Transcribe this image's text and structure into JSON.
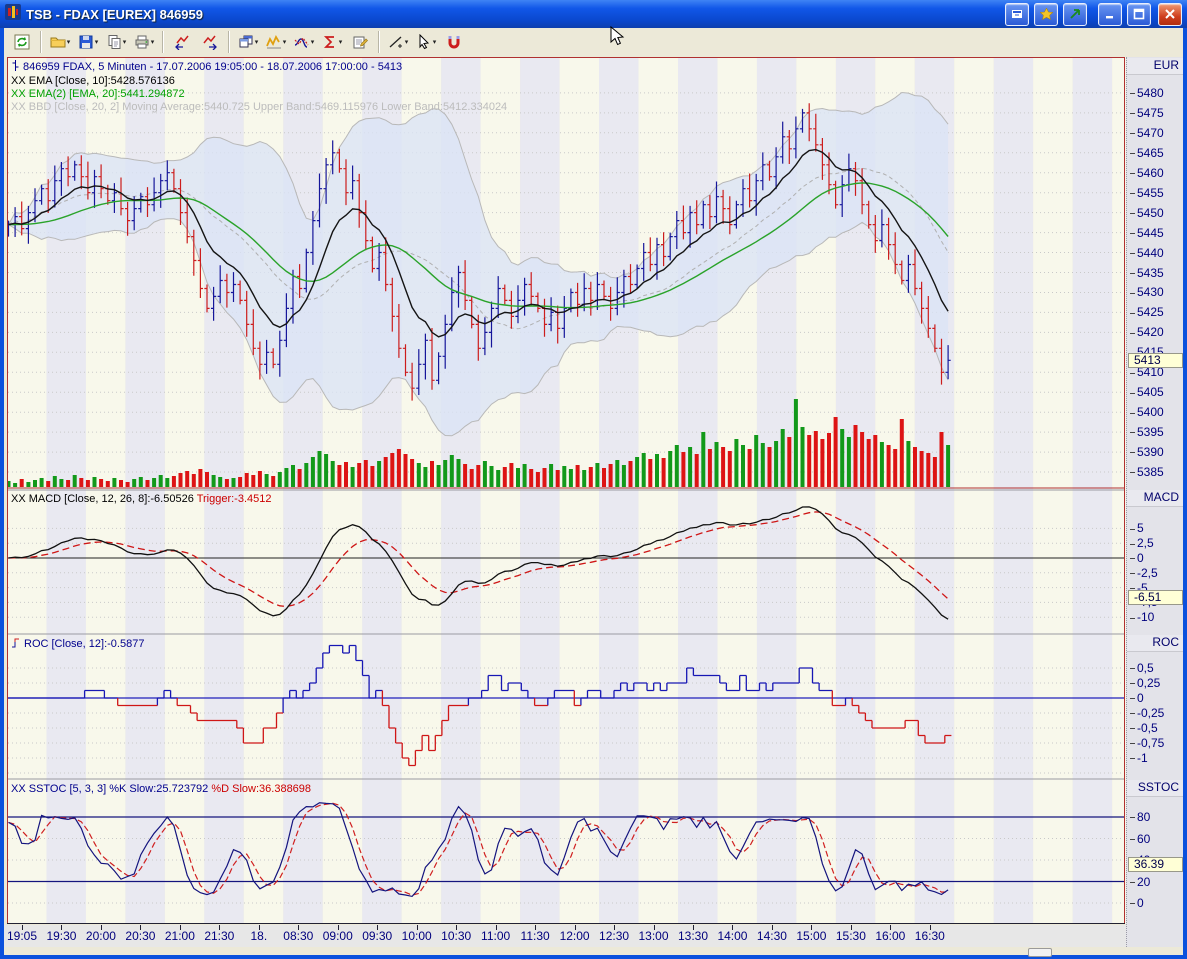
{
  "window": {
    "title": "TSB - FDAX [EUREX] 846959"
  },
  "toolbar": {
    "buttons": [
      {
        "name": "refresh-chart",
        "icon": "refresh"
      },
      {
        "sep": true
      },
      {
        "name": "open-file",
        "icon": "folder",
        "dropdown": true
      },
      {
        "name": "save",
        "icon": "floppy",
        "dropdown": true
      },
      {
        "name": "copy",
        "icon": "copy",
        "dropdown": true
      },
      {
        "name": "print",
        "icon": "printer",
        "dropdown": true
      },
      {
        "sep": true
      },
      {
        "name": "scroll-chart-left",
        "icon": "chart-left"
      },
      {
        "name": "scroll-chart-right",
        "icon": "chart-right"
      },
      {
        "sep": true
      },
      {
        "name": "chart-windows",
        "icon": "windows",
        "dropdown": true
      },
      {
        "name": "indicators",
        "icon": "indicator",
        "dropdown": true
      },
      {
        "name": "studies",
        "icon": "study",
        "dropdown": true
      },
      {
        "name": "signals",
        "icon": "sigma",
        "dropdown": true
      },
      {
        "name": "chart-properties",
        "icon": "properties"
      },
      {
        "sep": true
      },
      {
        "name": "draw-line",
        "icon": "line",
        "dropdown": true
      },
      {
        "name": "pointer-tool",
        "icon": "pointer",
        "dropdown": true
      },
      {
        "name": "magnet-mode",
        "icon": "magnet"
      }
    ]
  },
  "panels": {
    "price": {
      "axis_label": "EUR",
      "legend": {
        "line1": "846959  FDAX, 5 Minuten - 17.07.2006 19:05:00 - 18.07.2006 17:00:00 - 5413",
        "line2": "XX EMA [Close, 10]:5428.576136",
        "line3": "XX EMA(2) [EMA, 20]:5441.294872",
        "line4": "XX BBD [Close, 20, 2] Moving Average:5440.725 Upper Band:5469.115976 Lower Band:5412.334024"
      },
      "ticks": [
        {
          "v": 5480,
          "label": "5480"
        },
        {
          "v": 5475,
          "label": "5475"
        },
        {
          "v": 5470,
          "label": "5470"
        },
        {
          "v": 5465,
          "label": "5465"
        },
        {
          "v": 5460,
          "label": "5460"
        },
        {
          "v": 5455,
          "label": "5455"
        },
        {
          "v": 5450,
          "label": "5450"
        },
        {
          "v": 5445,
          "label": "5445"
        },
        {
          "v": 5440,
          "label": "5440"
        },
        {
          "v": 5435,
          "label": "5435"
        },
        {
          "v": 5430,
          "label": "5430"
        },
        {
          "v": 5425,
          "label": "5425"
        },
        {
          "v": 5420,
          "label": "5420"
        },
        {
          "v": 5415,
          "label": "5415"
        },
        {
          "v": 5410,
          "label": "5410"
        },
        {
          "v": 5405,
          "label": "5405"
        },
        {
          "v": 5400,
          "label": "5400"
        },
        {
          "v": 5395,
          "label": "5395"
        },
        {
          "v": 5390,
          "label": "5390"
        },
        {
          "v": 5385,
          "label": "5385"
        }
      ],
      "marker": {
        "v": 5413,
        "label": "5413"
      }
    },
    "macd": {
      "axis_label": "MACD",
      "legend_main": "XX MACD [Close, 12, 26, 8]:-6.50526",
      "legend_trigger": "Trigger:-3.4512",
      "ticks": [
        {
          "v": 5,
          "label": "5"
        },
        {
          "v": 2.5,
          "label": "2,5"
        },
        {
          "v": 0,
          "label": "0"
        },
        {
          "v": -2.5,
          "label": "-2,5"
        },
        {
          "v": -5,
          "label": "-5"
        },
        {
          "v": -7.5,
          "label": "-7,5"
        },
        {
          "v": -10,
          "label": "-10"
        }
      ],
      "marker": {
        "v": -6.51,
        "label": "-6.51"
      }
    },
    "roc": {
      "axis_label": "ROC",
      "legend": "ROC [Close, 12]:-0.5877",
      "ticks": [
        {
          "v": 0.5,
          "label": "0,5"
        },
        {
          "v": 0.25,
          "label": "0,25"
        },
        {
          "v": 0,
          "label": "0"
        },
        {
          "v": -0.25,
          "label": "-0,25"
        },
        {
          "v": -0.5,
          "label": "-0,5"
        },
        {
          "v": -0.75,
          "label": "-0,75"
        },
        {
          "v": -1,
          "label": "-1"
        }
      ]
    },
    "sstoc": {
      "axis_label": "SSTOC",
      "legend_k": "XX SSTOC [5, 3, 3] %K Slow:25.723792",
      "legend_d": "%D Slow:36.388698",
      "ticks": [
        {
          "v": 80,
          "label": "80"
        },
        {
          "v": 60,
          "label": "60"
        },
        {
          "v": 40,
          "label": "40"
        },
        {
          "v": 20,
          "label": "20"
        },
        {
          "v": 0,
          "label": "0"
        }
      ],
      "marker": {
        "v": 36.39,
        "label": "36.39"
      }
    }
  },
  "chart_data": {
    "type": "ohlc+indicators",
    "symbol": "846959 FDAX",
    "timeframe": "5 Minuten",
    "period": "17.07.2006 19:05:00 - 18.07.2006 17:00:00",
    "last_price": 5413,
    "x_labels": [
      "19:05",
      "19:30",
      "20:00",
      "20:30",
      "21:00",
      "21:30",
      "18.",
      "08:30",
      "09:00",
      "09:30",
      "10:00",
      "10:30",
      "11:00",
      "11:30",
      "12:00",
      "12:30",
      "13:00",
      "13:30",
      "14:00",
      "14:30",
      "15:00",
      "15:30",
      "16:00",
      "16:30"
    ],
    "price_range": [
      5381,
      5489
    ],
    "macd_range": [
      -12.7,
      11.5
    ],
    "roc_range": [
      -1.33,
      1.05
    ],
    "sstoc_range": [
      -19,
      114
    ],
    "sstoc_ref_lines": [
      80,
      20
    ],
    "indicators": {
      "ema": 10,
      "ema2": 20,
      "bbd": [
        20,
        2
      ],
      "macd": [
        12,
        26,
        8
      ],
      "roc": 12,
      "sstoc": [
        5,
        3,
        3
      ]
    },
    "closes": [
      5447,
      5449,
      5446,
      5450,
      5453,
      5456,
      5453,
      5458,
      5461,
      5459,
      5462,
      5459,
      5455,
      5459,
      5456,
      5453,
      5455,
      5451,
      5448,
      5451,
      5454,
      5452,
      5455,
      5458,
      5460,
      5456,
      5450,
      5444,
      5438,
      5431,
      5426,
      5429,
      5433,
      5430,
      5432,
      5428,
      5422,
      5416,
      5412,
      5415,
      5412,
      5418,
      5426,
      5434,
      5431,
      5440,
      5448,
      5456,
      5462,
      5465,
      5461,
      5455,
      5458,
      5450,
      5443,
      5436,
      5440,
      5432,
      5424,
      5416,
      5410,
      5406,
      5412,
      5418,
      5408,
      5414,
      5422,
      5430,
      5435,
      5428,
      5422,
      5416,
      5420,
      5426,
      5431,
      5428,
      5424,
      5428,
      5432,
      5429,
      5426,
      5422,
      5425,
      5421,
      5426,
      5430,
      5427,
      5431,
      5428,
      5432,
      5429,
      5426,
      5430,
      5434,
      5432,
      5436,
      5440,
      5437,
      5442,
      5439,
      5444,
      5448,
      5445,
      5450,
      5447,
      5452,
      5449,
      5454,
      5451,
      5447,
      5452,
      5456,
      5453,
      5458,
      5462,
      5459,
      5464,
      5469,
      5466,
      5471,
      5475,
      5471,
      5467,
      5462,
      5457,
      5452,
      5457,
      5461,
      5458,
      5452,
      5447,
      5443,
      5447,
      5442,
      5437,
      5433,
      5437,
      5431,
      5426,
      5421,
      5416,
      5410,
      5413
    ],
    "volumes": [
      6,
      4,
      8,
      5,
      7,
      9,
      6,
      11,
      8,
      7,
      12,
      9,
      7,
      10,
      8,
      6,
      9,
      7,
      5,
      8,
      10,
      7,
      9,
      12,
      9,
      11,
      14,
      16,
      13,
      18,
      15,
      12,
      10,
      8,
      9,
      10,
      14,
      12,
      16,
      13,
      11,
      15,
      19,
      22,
      18,
      24,
      30,
      36,
      33,
      26,
      22,
      25,
      20,
      24,
      27,
      21,
      26,
      30,
      34,
      38,
      33,
      28,
      24,
      20,
      26,
      22,
      27,
      32,
      28,
      23,
      18,
      22,
      26,
      21,
      17,
      20,
      24,
      19,
      23,
      18,
      15,
      19,
      23,
      17,
      21,
      18,
      22,
      17,
      20,
      24,
      19,
      23,
      27,
      22,
      26,
      30,
      34,
      28,
      33,
      29,
      36,
      42,
      35,
      40,
      33,
      55,
      38,
      45,
      40,
      36,
      48,
      42,
      38,
      52,
      44,
      40,
      46,
      58,
      50,
      88,
      60,
      52,
      56,
      48,
      54,
      70,
      58,
      50,
      62,
      55,
      48,
      52,
      45,
      42,
      38,
      68,
      46,
      40,
      36,
      34,
      30,
      55,
      42
    ]
  },
  "colors": {
    "up": "#16169a",
    "down": "#cc1d1d",
    "vol_up": "#12991a",
    "vol_down": "#dd1414",
    "ema": "#141414",
    "ema2": "#2aa32a",
    "bb_fill": "#d9e3f6",
    "bb_line": "#b8b8b8",
    "bb_mid": "#b0b0b0",
    "macd": "#111111",
    "trigger": "#cf1616",
    "roc_pos": "#1717b4",
    "roc_neg": "#cf1616",
    "k_line": "#14147e",
    "d_line": "#d02020",
    "marker_bg": "#ffffd6",
    "grid": "#c9c9c9",
    "stripe_a": "#f8f8eb",
    "stripe_b": "#e9e9f1",
    "axis_text": "#00007d",
    "border_red": "#b03030"
  }
}
